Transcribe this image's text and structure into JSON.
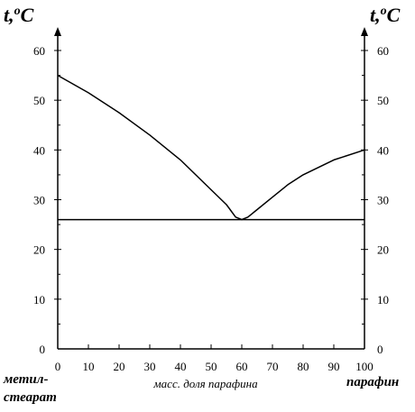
{
  "chart_data": {
    "type": "line",
    "y_axis_title": {
      "base": "t,",
      "sup": "o",
      "unit": "C"
    },
    "xlabel": "масс. доля парафина",
    "left_label": [
      "метил-",
      "стеарат"
    ],
    "right_label": "парафин",
    "xlim": [
      0,
      100
    ],
    "ylim": [
      0,
      60
    ],
    "x_ticks": [
      0,
      10,
      20,
      30,
      40,
      50,
      60,
      70,
      80,
      90,
      100
    ],
    "y_ticks": [
      0,
      10,
      20,
      30,
      40,
      50,
      60
    ],
    "series": [
      {
        "x": [
          0,
          10,
          20,
          30,
          40,
          50,
          55,
          58,
          60,
          62,
          65,
          70,
          75,
          80,
          90,
          100
        ],
        "y": [
          55,
          51.5,
          47.5,
          43,
          38,
          32,
          29,
          26.5,
          26,
          26.5,
          28,
          30.5,
          33,
          35,
          38,
          40
        ]
      },
      {
        "x": [
          0,
          100
        ],
        "y": [
          26,
          26
        ]
      }
    ],
    "grid": false
  }
}
